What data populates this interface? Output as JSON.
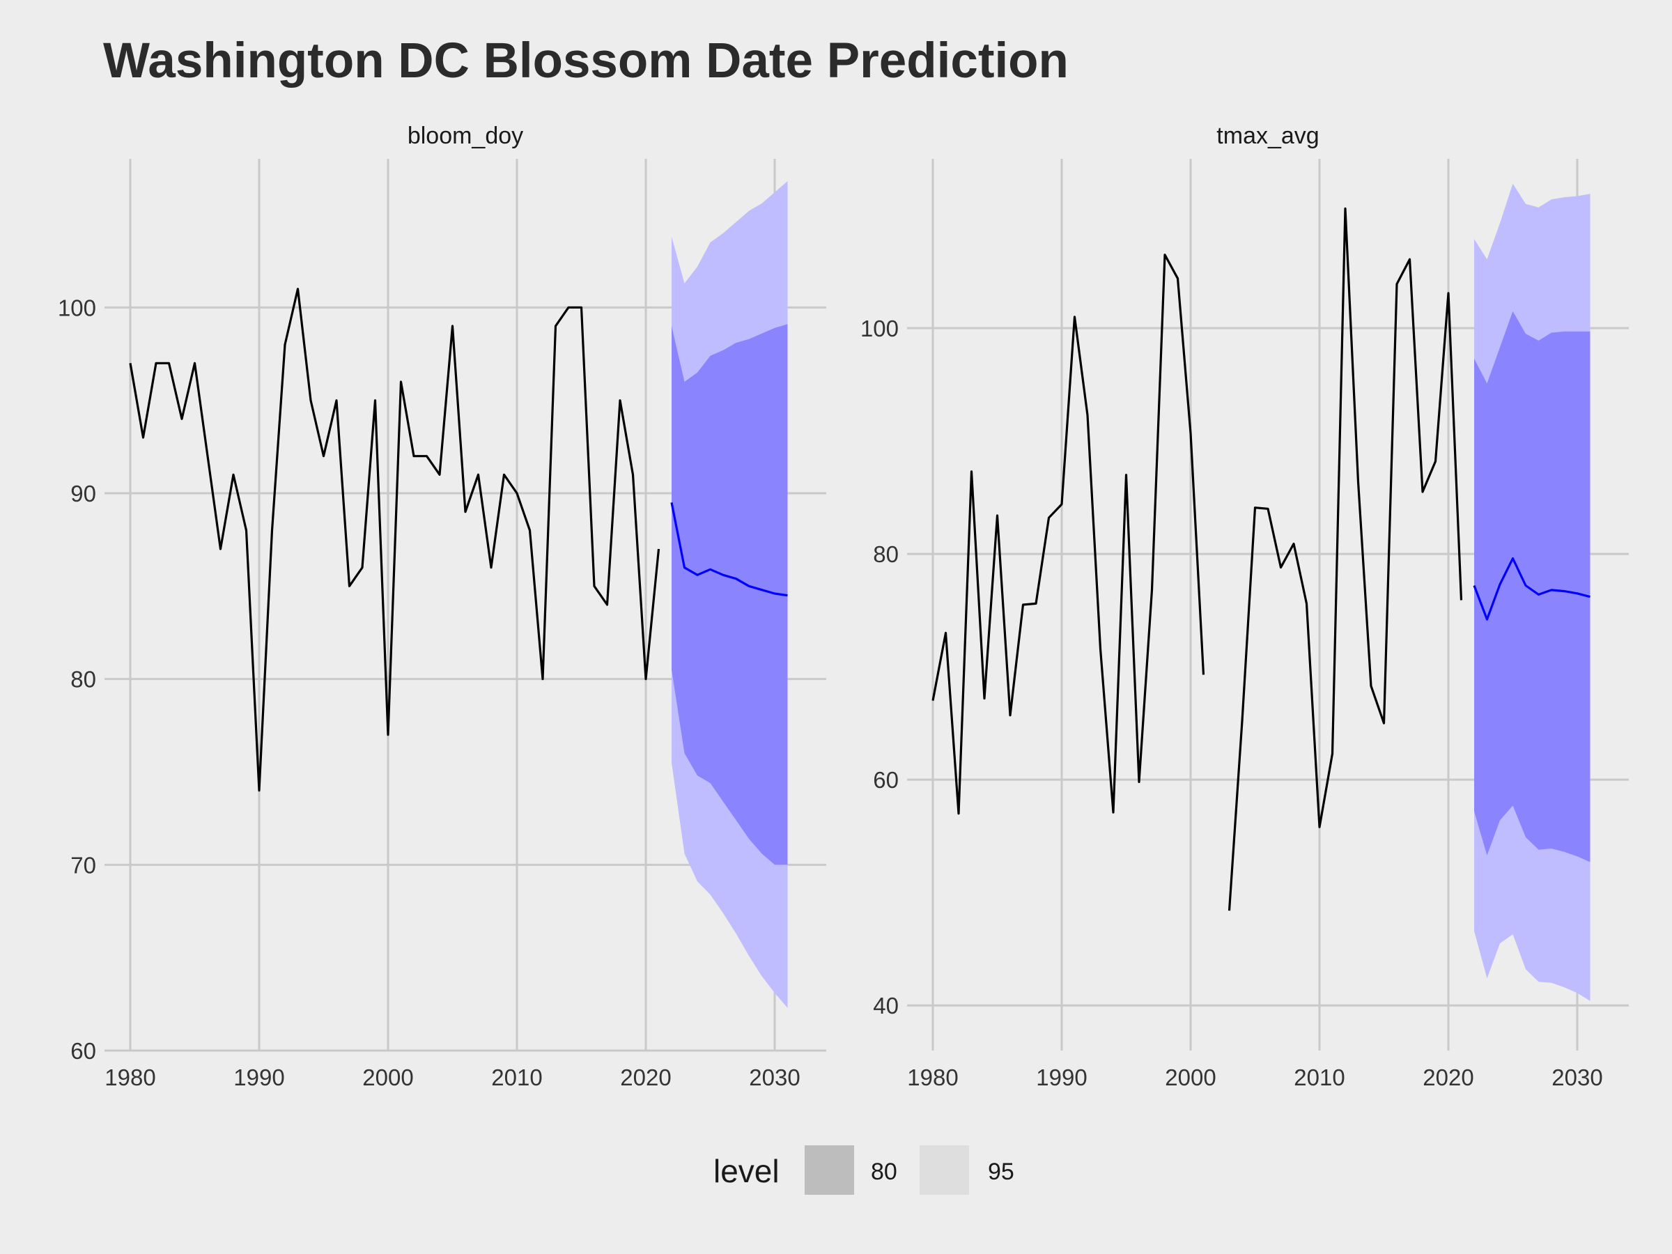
{
  "title": "Washington DC Blossom Date Prediction",
  "legend": {
    "title": "level",
    "items": [
      {
        "label": "80",
        "color": "#bdbdbd"
      },
      {
        "label": "95",
        "color": "#dedede"
      }
    ]
  },
  "colors": {
    "background": "#ededed",
    "grid": "#c9c9c9",
    "history_line": "#000000",
    "forecast_line": "#0000ff",
    "band_80": "#8a85ff",
    "band_95": "#bfbcff"
  },
  "chart_data": [
    {
      "type": "line",
      "panel": "bloom_doy",
      "xlim": [
        1978,
        2034
      ],
      "ylim": [
        60,
        108
      ],
      "x_ticks": [
        "1980",
        "1990",
        "2000",
        "2010",
        "2020",
        "2030"
      ],
      "y_ticks": [
        "60",
        "70",
        "80",
        "90",
        "100"
      ],
      "history": [
        [
          1980,
          97
        ],
        [
          1981,
          93
        ],
        [
          1982,
          97
        ],
        [
          1983,
          97
        ],
        [
          1984,
          94
        ],
        [
          1985,
          97
        ],
        [
          1986,
          92
        ],
        [
          1987,
          87
        ],
        [
          1988,
          91
        ],
        [
          1989,
          88
        ],
        [
          1990,
          74
        ],
        [
          1991,
          88
        ],
        [
          1992,
          98
        ],
        [
          1993,
          101
        ],
        [
          1994,
          95
        ],
        [
          1995,
          92
        ],
        [
          1996,
          95
        ],
        [
          1997,
          85
        ],
        [
          1998,
          86
        ],
        [
          1999,
          95
        ],
        [
          2000,
          77
        ],
        [
          2001,
          96
        ],
        [
          2002,
          92
        ],
        [
          2003,
          92
        ],
        [
          2004,
          91
        ],
        [
          2005,
          99
        ],
        [
          2006,
          89
        ],
        [
          2007,
          91
        ],
        [
          2008,
          86
        ],
        [
          2009,
          91
        ],
        [
          2010,
          90
        ],
        [
          2011,
          88
        ],
        [
          2012,
          80
        ],
        [
          2013,
          99
        ],
        [
          2014,
          100
        ],
        [
          2015,
          100
        ],
        [
          2016,
          85
        ],
        [
          2017,
          84
        ],
        [
          2018,
          95
        ],
        [
          2019,
          91
        ],
        [
          2020,
          80
        ],
        [
          2021,
          87
        ]
      ],
      "forecast": {
        "x": [
          2022,
          2023,
          2024,
          2025,
          2026,
          2027,
          2028,
          2029,
          2030,
          2031
        ],
        "mean": [
          89.5,
          86.0,
          85.6,
          85.9,
          85.6,
          85.4,
          85.0,
          84.8,
          84.6,
          84.5
        ],
        "lo80": [
          80.5,
          76.0,
          74.8,
          74.4,
          73.4,
          72.4,
          71.4,
          70.6,
          70.0,
          70.0
        ],
        "hi80": [
          99.0,
          96.0,
          96.5,
          97.4,
          97.7,
          98.1,
          98.3,
          98.6,
          98.9,
          99.1
        ],
        "lo95": [
          75.5,
          70.6,
          69.1,
          68.4,
          67.4,
          66.3,
          65.1,
          64.0,
          63.1,
          62.3
        ],
        "hi95": [
          103.8,
          101.3,
          102.2,
          103.5,
          104.0,
          104.6,
          105.2,
          105.6,
          106.2,
          106.8
        ]
      }
    },
    {
      "type": "line",
      "panel": "tmax_avg",
      "xlim": [
        1978,
        2034
      ],
      "ylim": [
        36,
        115
      ],
      "x_ticks": [
        "1980",
        "1990",
        "2000",
        "2010",
        "2020",
        "2030"
      ],
      "y_ticks": [
        "40",
        "60",
        "80",
        "100"
      ],
      "history": [
        [
          1980,
          67
        ],
        [
          1981,
          73
        ],
        [
          1982,
          57
        ],
        [
          1983,
          87.3
        ],
        [
          1984,
          67.2
        ],
        [
          1985,
          83.4
        ],
        [
          1986,
          65.7
        ],
        [
          1987,
          75.5
        ],
        [
          1988,
          75.6
        ],
        [
          1989,
          83.2
        ],
        [
          1990,
          84.4
        ],
        [
          1991,
          101
        ],
        [
          1992,
          92.3
        ],
        [
          1993,
          71.6
        ],
        [
          1994,
          57.1
        ],
        [
          1995,
          87
        ],
        [
          1996,
          59.8
        ],
        [
          1997,
          76.8
        ],
        [
          1998,
          106.5
        ],
        [
          1999,
          104.4
        ],
        [
          2000,
          90.7
        ],
        [
          2001,
          69.3
        ],
        null,
        [
          2003,
          48.4
        ],
        [
          2004,
          65.2
        ],
        [
          2005,
          84.1
        ],
        [
          2006,
          84
        ],
        [
          2007,
          78.8
        ],
        [
          2008,
          80.9
        ],
        [
          2009,
          75.6
        ],
        [
          2010,
          55.8
        ],
        [
          2011,
          62.3
        ],
        [
          2012,
          110.6
        ],
        [
          2013,
          86.4
        ],
        [
          2014,
          68.3
        ],
        [
          2015,
          65
        ],
        [
          2016,
          103.9
        ],
        [
          2017,
          106.1
        ],
        [
          2018,
          85.5
        ],
        [
          2019,
          88.2
        ],
        [
          2020,
          103.1
        ],
        [
          2021,
          75.9
        ]
      ],
      "forecast": {
        "x": [
          2022,
          2023,
          2024,
          2025,
          2026,
          2027,
          2028,
          2029,
          2030,
          2031
        ],
        "mean": [
          77.2,
          74.2,
          77.3,
          79.6,
          77.2,
          76.4,
          76.8,
          76.7,
          76.5,
          76.2
        ],
        "lo80": [
          57.2,
          53.3,
          56.4,
          57.7,
          54.9,
          53.8,
          53.9,
          53.6,
          53.2,
          52.7
        ],
        "hi80": [
          97.3,
          95.1,
          98.3,
          101.5,
          99.5,
          98.9,
          99.6,
          99.7,
          99.7,
          99.7
        ],
        "lo95": [
          46.6,
          42.4,
          45.5,
          46.3,
          43.2,
          42.1,
          42.0,
          41.6,
          41.1,
          40.4
        ],
        "hi95": [
          107.9,
          106.1,
          109.3,
          112.8,
          111.0,
          110.7,
          111.4,
          111.6,
          111.7,
          111.9
        ]
      }
    }
  ]
}
